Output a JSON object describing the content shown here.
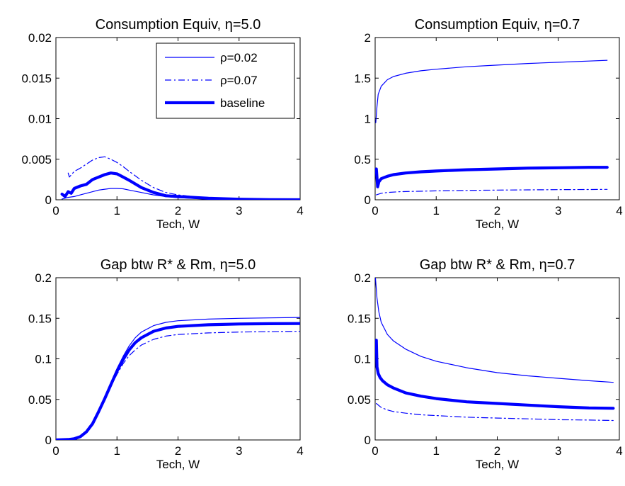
{
  "colors": {
    "series": "#0000ff",
    "axis": "#000000",
    "background": "#ffffff"
  },
  "chart_data": [
    {
      "type": "line",
      "title": "Consumption Equiv,  η=5.0",
      "xlabel": "Tech, W",
      "ylabel": "",
      "xlim": [
        0,
        4
      ],
      "ylim": [
        0,
        0.02
      ],
      "xticks": [
        0,
        1,
        2,
        3,
        4
      ],
      "yticks": [
        0,
        0.005,
        0.01,
        0.015,
        0.02
      ],
      "xtick_labels": [
        "0",
        "1",
        "2",
        "3",
        "4"
      ],
      "ytick_labels": [
        "0",
        "0.005",
        "0.01",
        "0.015",
        "0.02"
      ],
      "grid": false,
      "legend_position": "top-right",
      "series": [
        {
          "name": "ρ=0.02",
          "style": "thin-solid",
          "x": [
            0.1,
            0.2,
            0.3,
            0.4,
            0.5,
            0.6,
            0.7,
            0.8,
            0.9,
            1.0,
            1.1,
            1.2,
            1.4,
            1.6,
            1.8,
            2.0,
            2.5,
            3.0,
            3.5,
            4.0
          ],
          "y": [
            0.0001,
            0.0003,
            0.0004,
            0.0006,
            0.0008,
            0.001,
            0.0012,
            0.0013,
            0.0014,
            0.0014,
            0.00135,
            0.0012,
            0.0009,
            0.0006,
            0.0004,
            0.00025,
            0.0001,
            4e-05,
            1e-05,
            0.0
          ]
        },
        {
          "name": "ρ=0.07",
          "style": "dash-dot",
          "x": [
            0.2,
            0.22,
            0.3,
            0.4,
            0.5,
            0.6,
            0.7,
            0.8,
            0.9,
            1.0,
            1.1,
            1.2,
            1.4,
            1.6,
            1.8,
            2.0,
            2.5,
            3.0,
            3.5,
            4.0
          ],
          "y": [
            0.0033,
            0.0028,
            0.0035,
            0.0039,
            0.0044,
            0.0049,
            0.0052,
            0.0053,
            0.005,
            0.0046,
            0.0041,
            0.0035,
            0.0024,
            0.0015,
            0.0009,
            0.0006,
            0.0002,
            7e-05,
            2e-05,
            0.0
          ]
        },
        {
          "name": "baseline",
          "style": "thick-solid",
          "x": [
            0.1,
            0.15,
            0.2,
            0.25,
            0.3,
            0.4,
            0.5,
            0.6,
            0.7,
            0.8,
            0.9,
            1.0,
            1.1,
            1.2,
            1.4,
            1.6,
            1.8,
            2.0,
            2.5,
            3.0,
            3.5,
            4.0
          ],
          "y": [
            0.0007,
            0.0004,
            0.001,
            0.0008,
            0.0014,
            0.0017,
            0.0019,
            0.0025,
            0.0028,
            0.0031,
            0.0033,
            0.0032,
            0.0028,
            0.0024,
            0.0015,
            0.0009,
            0.0005,
            0.0004,
            0.00018,
            7e-05,
            2e-05,
            0.0
          ]
        }
      ]
    },
    {
      "type": "line",
      "title": "Consumption Equiv,  η=0.7",
      "xlabel": "Tech, W",
      "ylabel": "",
      "xlim": [
        0,
        4
      ],
      "ylim": [
        0,
        2
      ],
      "xticks": [
        0,
        1,
        2,
        3,
        4
      ],
      "yticks": [
        0,
        0.5,
        1,
        1.5,
        2
      ],
      "xtick_labels": [
        "0",
        "1",
        "2",
        "3",
        "4"
      ],
      "ytick_labels": [
        "0",
        "0.5",
        "1",
        "1.5",
        "2"
      ],
      "grid": false,
      "series": [
        {
          "name": "ρ=0.02",
          "style": "thin-solid",
          "x": [
            0.01,
            0.03,
            0.05,
            0.1,
            0.2,
            0.3,
            0.5,
            0.75,
            1.0,
            1.5,
            2.0,
            2.5,
            3.0,
            3.5,
            3.8
          ],
          "y": [
            0.95,
            1.15,
            1.3,
            1.4,
            1.48,
            1.52,
            1.56,
            1.59,
            1.61,
            1.64,
            1.66,
            1.68,
            1.695,
            1.71,
            1.72
          ]
        },
        {
          "name": "ρ=0.07",
          "style": "dash-dot",
          "x": [
            0.02,
            0.1,
            0.2,
            0.4,
            0.7,
            1.0,
            1.5,
            2.0,
            2.5,
            3.0,
            3.5,
            3.8
          ],
          "y": [
            0.06,
            0.08,
            0.09,
            0.1,
            0.105,
            0.11,
            0.115,
            0.12,
            0.122,
            0.125,
            0.127,
            0.128
          ]
        },
        {
          "name": "baseline",
          "style": "thick-solid",
          "x": [
            0.02,
            0.04,
            0.06,
            0.1,
            0.2,
            0.3,
            0.5,
            0.75,
            1.0,
            1.5,
            2.0,
            2.5,
            3.0,
            3.5,
            3.8
          ],
          "y": [
            0.38,
            0.16,
            0.22,
            0.26,
            0.29,
            0.31,
            0.33,
            0.345,
            0.355,
            0.37,
            0.38,
            0.39,
            0.395,
            0.4,
            0.4
          ]
        }
      ]
    },
    {
      "type": "line",
      "title": "Gap btw R* & Rm,     η=5.0",
      "xlabel": "Tech, W",
      "ylabel": "",
      "xlim": [
        0,
        4
      ],
      "ylim": [
        0,
        0.2
      ],
      "xticks": [
        0,
        1,
        2,
        3,
        4
      ],
      "yticks": [
        0,
        0.05,
        0.1,
        0.15,
        0.2
      ],
      "xtick_labels": [
        "0",
        "1",
        "2",
        "3",
        "4"
      ],
      "ytick_labels": [
        "0",
        "0.05",
        "0.1",
        "0.15",
        "0.2"
      ],
      "grid": false,
      "series": [
        {
          "name": "ρ=0.02",
          "style": "thin-solid",
          "x": [
            0.0,
            0.2,
            0.3,
            0.4,
            0.5,
            0.6,
            0.7,
            0.8,
            0.9,
            1.0,
            1.1,
            1.2,
            1.3,
            1.4,
            1.6,
            1.8,
            2.0,
            2.5,
            3.0,
            3.5,
            4.0
          ],
          "y": [
            0.0,
            0.0005,
            0.0015,
            0.004,
            0.01,
            0.02,
            0.035,
            0.052,
            0.07,
            0.088,
            0.103,
            0.116,
            0.126,
            0.133,
            0.141,
            0.145,
            0.147,
            0.149,
            0.15,
            0.1505,
            0.151
          ]
        },
        {
          "name": "ρ=0.07",
          "style": "dash-dot",
          "x": [
            0.0,
            0.2,
            0.3,
            0.4,
            0.5,
            0.6,
            0.7,
            0.8,
            0.9,
            1.0,
            1.1,
            1.2,
            1.3,
            1.4,
            1.6,
            1.8,
            2.0,
            2.5,
            3.0,
            3.5,
            4.0
          ],
          "y": [
            0.0,
            0.0005,
            0.0015,
            0.004,
            0.01,
            0.02,
            0.034,
            0.05,
            0.066,
            0.081,
            0.094,
            0.104,
            0.111,
            0.117,
            0.124,
            0.128,
            0.13,
            0.132,
            0.133,
            0.1335,
            0.134
          ]
        },
        {
          "name": "baseline",
          "style": "thick-solid",
          "x": [
            0.0,
            0.2,
            0.3,
            0.4,
            0.5,
            0.6,
            0.7,
            0.8,
            0.9,
            1.0,
            1.1,
            1.2,
            1.3,
            1.4,
            1.6,
            1.8,
            2.0,
            2.5,
            3.0,
            3.5,
            4.0
          ],
          "y": [
            0.0,
            0.0005,
            0.0015,
            0.004,
            0.01,
            0.02,
            0.035,
            0.051,
            0.068,
            0.085,
            0.099,
            0.111,
            0.12,
            0.126,
            0.134,
            0.138,
            0.14,
            0.142,
            0.143,
            0.1433,
            0.1435
          ]
        }
      ]
    },
    {
      "type": "line",
      "title": "Gap btw R* & Rm,     η=0.7",
      "xlabel": "Tech, W",
      "ylabel": "",
      "xlim": [
        0,
        4
      ],
      "ylim": [
        0,
        0.2
      ],
      "xticks": [
        0,
        1,
        2,
        3,
        4
      ],
      "yticks": [
        0,
        0.05,
        0.1,
        0.15,
        0.2
      ],
      "xtick_labels": [
        "0",
        "1",
        "2",
        "3",
        "4"
      ],
      "ytick_labels": [
        "0",
        "0.05",
        "0.1",
        "0.15",
        "0.2"
      ],
      "grid": false,
      "series": [
        {
          "name": "ρ=0.02",
          "style": "thin-solid",
          "x": [
            0.005,
            0.03,
            0.06,
            0.1,
            0.2,
            0.3,
            0.5,
            0.75,
            1.0,
            1.5,
            2.0,
            2.5,
            3.0,
            3.5,
            3.9
          ],
          "y": [
            0.2,
            0.175,
            0.158,
            0.145,
            0.13,
            0.122,
            0.112,
            0.103,
            0.097,
            0.089,
            0.083,
            0.079,
            0.076,
            0.073,
            0.071
          ]
        },
        {
          "name": "ρ=0.07",
          "style": "dash-dot",
          "x": [
            0.02,
            0.1,
            0.2,
            0.3,
            0.5,
            0.75,
            1.0,
            1.5,
            2.0,
            2.5,
            3.0,
            3.5,
            3.9
          ],
          "y": [
            0.045,
            0.04,
            0.037,
            0.035,
            0.033,
            0.031,
            0.03,
            0.028,
            0.027,
            0.026,
            0.025,
            0.0245,
            0.024
          ]
        },
        {
          "name": "baseline",
          "style": "thick-solid",
          "x": [
            0.02,
            0.03,
            0.05,
            0.08,
            0.12,
            0.2,
            0.3,
            0.5,
            0.75,
            1.0,
            1.5,
            2.0,
            2.5,
            3.0,
            3.5,
            3.9
          ],
          "y": [
            0.123,
            0.09,
            0.082,
            0.077,
            0.073,
            0.068,
            0.064,
            0.058,
            0.054,
            0.051,
            0.047,
            0.045,
            0.043,
            0.041,
            0.0395,
            0.039
          ]
        }
      ]
    }
  ]
}
